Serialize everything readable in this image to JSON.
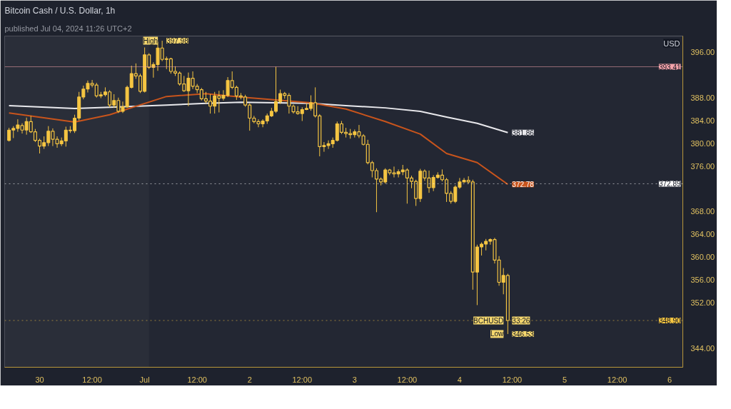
{
  "chart_data": {
    "type": "candlestick",
    "title": "Bitcoin Cash / U.S. Dollar, 1h",
    "subtitle": "published Jul 04, 2024 11:26 UTC+2",
    "ylabel": "USD",
    "color": "#f5c542",
    "x": [
      "2024-06-29T17:00",
      "2024-06-29T18:00",
      "2024-06-29T19:00",
      "2024-06-29T20:00",
      "2024-06-29T21:00",
      "2024-06-29T22:00",
      "2024-06-29T23:00",
      "2024-06-30T00:00",
      "2024-06-30T01:00",
      "2024-06-30T02:00",
      "2024-06-30T03:00",
      "2024-06-30T04:00",
      "2024-06-30T05:00",
      "2024-06-30T06:00",
      "2024-06-30T07:00",
      "2024-06-30T08:00",
      "2024-06-30T09:00",
      "2024-06-30T10:00",
      "2024-06-30T11:00",
      "2024-06-30T12:00",
      "2024-06-30T13:00",
      "2024-06-30T14:00",
      "2024-06-30T15:00",
      "2024-06-30T16:00",
      "2024-06-30T17:00",
      "2024-06-30T18:00",
      "2024-06-30T19:00",
      "2024-06-30T20:00",
      "2024-06-30T21:00",
      "2024-06-30T22:00",
      "2024-06-30T23:00",
      "2024-07-01T00:00",
      "2024-07-01T01:00",
      "2024-07-01T02:00",
      "2024-07-01T03:00",
      "2024-07-01T04:00",
      "2024-07-01T05:00",
      "2024-07-01T06:00",
      "2024-07-01T07:00",
      "2024-07-01T08:00",
      "2024-07-01T09:00",
      "2024-07-01T10:00",
      "2024-07-01T11:00",
      "2024-07-01T12:00",
      "2024-07-01T13:00",
      "2024-07-01T14:00",
      "2024-07-01T15:00",
      "2024-07-01T16:00",
      "2024-07-01T17:00",
      "2024-07-01T18:00",
      "2024-07-01T19:00",
      "2024-07-01T20:00",
      "2024-07-01T21:00",
      "2024-07-01T22:00",
      "2024-07-01T23:00",
      "2024-07-02T00:00",
      "2024-07-02T01:00",
      "2024-07-02T02:00",
      "2024-07-02T03:00",
      "2024-07-02T04:00",
      "2024-07-02T05:00",
      "2024-07-02T06:00",
      "2024-07-02T07:00",
      "2024-07-02T08:00",
      "2024-07-02T09:00",
      "2024-07-02T10:00",
      "2024-07-02T11:00",
      "2024-07-02T12:00",
      "2024-07-02T13:00",
      "2024-07-02T14:00",
      "2024-07-02T15:00",
      "2024-07-02T16:00",
      "2024-07-02T17:00",
      "2024-07-02T18:00",
      "2024-07-02T19:00",
      "2024-07-02T20:00",
      "2024-07-02T21:00",
      "2024-07-02T22:00",
      "2024-07-02T23:00",
      "2024-07-03T00:00",
      "2024-07-03T01:00",
      "2024-07-03T02:00",
      "2024-07-03T03:00",
      "2024-07-03T04:00",
      "2024-07-03T05:00",
      "2024-07-03T06:00",
      "2024-07-03T07:00",
      "2024-07-03T08:00",
      "2024-07-03T09:00",
      "2024-07-03T10:00",
      "2024-07-03T11:00",
      "2024-07-03T12:00",
      "2024-07-03T13:00",
      "2024-07-03T14:00",
      "2024-07-03T15:00",
      "2024-07-03T16:00",
      "2024-07-03T17:00",
      "2024-07-03T18:00",
      "2024-07-03T19:00",
      "2024-07-03T20:00",
      "2024-07-03T21:00",
      "2024-07-03T22:00",
      "2024-07-03T23:00",
      "2024-07-04T00:00",
      "2024-07-04T01:00",
      "2024-07-04T02:00",
      "2024-07-04T03:00",
      "2024-07-04T04:00",
      "2024-07-04T05:00",
      "2024-07-04T06:00",
      "2024-07-04T07:00",
      "2024-07-04T08:00",
      "2024-07-04T09:00",
      "2024-07-04T10:00",
      "2024-07-04T11:00"
    ],
    "ohlc": [
      [
        380.5,
        382.7,
        380.3,
        382.3
      ],
      [
        382.3,
        383.0,
        380.9,
        382.6
      ],
      [
        382.6,
        384.2,
        382.0,
        383.2
      ],
      [
        383.1,
        383.5,
        381.7,
        382.3
      ],
      [
        382.3,
        384.5,
        381.5,
        383.8
      ],
      [
        383.8,
        384.8,
        381.8,
        382.0
      ],
      [
        382.0,
        382.5,
        380.2,
        380.5
      ],
      [
        380.5,
        380.8,
        378.2,
        379.5
      ],
      [
        379.5,
        381.2,
        379.0,
        380.1
      ],
      [
        380.1,
        383.0,
        379.5,
        382.1
      ],
      [
        382.1,
        382.6,
        379.5,
        380.7
      ],
      [
        380.7,
        381.2,
        379.2,
        379.9
      ],
      [
        379.9,
        381.0,
        379.5,
        380.4
      ],
      [
        380.4,
        382.9,
        379.4,
        382.3
      ],
      [
        382.3,
        383.0,
        381.8,
        382.2
      ],
      [
        382.2,
        385.0,
        381.8,
        384.4
      ],
      [
        384.4,
        389.0,
        384.0,
        388.1
      ],
      [
        388.1,
        390.1,
        387.7,
        389.5
      ],
      [
        389.5,
        391.0,
        388.9,
        390.5
      ],
      [
        390.5,
        391.1,
        389.8,
        390.2
      ],
      [
        390.2,
        390.6,
        388.0,
        388.3
      ],
      [
        388.3,
        389.0,
        387.9,
        388.5
      ],
      [
        388.5,
        389.8,
        388.2,
        389.0
      ],
      [
        389.0,
        389.3,
        386.3,
        386.7
      ],
      [
        386.7,
        388.6,
        386.2,
        387.5
      ],
      [
        387.5,
        388.0,
        385.3,
        385.6
      ],
      [
        385.6,
        387.3,
        385.3,
        386.4
      ],
      [
        386.4,
        390.1,
        386.2,
        389.8
      ],
      [
        389.8,
        393.6,
        389.6,
        392.2
      ],
      [
        392.2,
        394.0,
        391.3,
        391.8
      ],
      [
        391.8,
        392.2,
        388.8,
        389.1
      ],
      [
        389.1,
        396.8,
        388.9,
        395.5
      ],
      [
        395.5,
        395.8,
        393.0,
        393.3
      ],
      [
        393.3,
        394.2,
        391.5,
        393.8
      ],
      [
        393.8,
        397.8,
        392.7,
        396.7
      ],
      [
        396.7,
        397.98,
        394.4,
        394.7
      ],
      [
        394.7,
        395.2,
        393.0,
        394.8
      ],
      [
        394.8,
        395.0,
        392.2,
        392.6
      ],
      [
        392.6,
        393.5,
        391.8,
        392.3
      ],
      [
        392.3,
        392.6,
        390.1,
        390.4
      ],
      [
        390.4,
        391.8,
        389.0,
        389.2
      ],
      [
        389.2,
        392.4,
        386.5,
        391.4
      ],
      [
        391.4,
        392.6,
        389.5,
        390.0
      ],
      [
        390.0,
        390.4,
        388.8,
        389.4
      ],
      [
        389.4,
        389.7,
        387.5,
        387.8
      ],
      [
        387.8,
        389.0,
        387.0,
        387.4
      ],
      [
        387.4,
        388.6,
        385.2,
        386.5
      ],
      [
        386.5,
        389.0,
        385.2,
        388.3
      ],
      [
        388.3,
        389.2,
        385.4,
        387.9
      ],
      [
        387.9,
        389.3,
        387.5,
        388.4
      ],
      [
        388.4,
        391.6,
        388.1,
        391.0
      ],
      [
        391.0,
        392.6,
        389.5,
        389.8
      ],
      [
        389.8,
        390.1,
        387.6,
        388.3
      ],
      [
        388.3,
        388.8,
        387.7,
        388.1
      ],
      [
        388.1,
        388.5,
        386.4,
        386.7
      ],
      [
        386.7,
        387.0,
        382.2,
        384.4
      ],
      [
        384.4,
        384.8,
        383.5,
        383.8
      ],
      [
        383.8,
        384.2,
        382.8,
        383.4
      ],
      [
        383.4,
        384.2,
        382.8,
        383.9
      ],
      [
        383.9,
        385.2,
        383.4,
        384.8
      ],
      [
        384.8,
        386.2,
        384.6,
        385.6
      ],
      [
        385.6,
        393.41,
        385.3,
        387.3
      ],
      [
        387.3,
        389.4,
        386.9,
        388.7
      ],
      [
        388.7,
        389.0,
        387.8,
        388.4
      ],
      [
        388.4,
        388.8,
        385.2,
        386.5
      ],
      [
        386.5,
        386.8,
        385.2,
        385.5
      ],
      [
        385.5,
        386.5,
        385.0,
        385.2
      ],
      [
        385.2,
        386.3,
        383.9,
        385.9
      ],
      [
        385.9,
        387.0,
        385.8,
        386.1
      ],
      [
        386.1,
        388.4,
        385.7,
        387.1
      ],
      [
        387.1,
        389.8,
        384.5,
        384.8
      ],
      [
        384.8,
        385.1,
        377.7,
        379.4
      ],
      [
        379.4,
        380.2,
        378.5,
        379.6
      ],
      [
        379.6,
        380.5,
        379.0,
        379.9
      ],
      [
        379.9,
        381.0,
        379.2,
        380.5
      ],
      [
        380.5,
        383.8,
        380.3,
        383.4
      ],
      [
        383.4,
        383.9,
        381.6,
        381.9
      ],
      [
        381.9,
        382.7,
        381.0,
        381.7
      ],
      [
        381.7,
        382.5,
        380.8,
        381.5
      ],
      [
        381.5,
        382.4,
        381.0,
        382.0
      ],
      [
        382.0,
        383.2,
        380.9,
        381.3
      ],
      [
        381.3,
        381.6,
        379.6,
        379.8
      ],
      [
        379.8,
        380.6,
        376.3,
        376.6
      ],
      [
        376.6,
        376.9,
        374.0,
        375.2
      ],
      [
        375.2,
        375.6,
        367.9,
        373.7
      ],
      [
        373.7,
        374.0,
        372.6,
        373.2
      ],
      [
        373.2,
        375.6,
        372.9,
        375.3
      ],
      [
        375.3,
        375.5,
        374.4,
        374.8
      ],
      [
        374.8,
        375.9,
        374.0,
        374.6
      ],
      [
        374.6,
        375.4,
        374.0,
        375.0
      ],
      [
        375.0,
        376.2,
        374.4,
        375.3
      ],
      [
        375.3,
        375.6,
        369.4,
        373.9
      ],
      [
        373.9,
        374.3,
        372.1,
        373.3
      ],
      [
        373.3,
        373.6,
        369.0,
        370.3
      ],
      [
        370.3,
        375.5,
        369.7,
        375.1
      ],
      [
        375.1,
        375.4,
        373.4,
        373.9
      ],
      [
        373.9,
        375.2,
        371.3,
        372.2
      ],
      [
        372.2,
        374.4,
        371.6,
        374.0
      ],
      [
        374.0,
        374.9,
        373.8,
        374.4
      ],
      [
        374.4,
        375.4,
        373.3,
        373.6
      ],
      [
        373.6,
        373.9,
        369.7,
        371.2
      ],
      [
        371.2,
        371.6,
        369.4,
        369.8
      ],
      [
        369.8,
        372.6,
        369.5,
        372.3
      ],
      [
        372.3,
        373.9,
        372.0,
        373.2
      ],
      [
        373.2,
        373.9,
        373.1,
        373.5
      ],
      [
        373.5,
        374.2,
        372.9,
        373.2
      ],
      [
        373.2,
        373.6,
        354.3,
        357.4
      ],
      [
        357.4,
        362.2,
        351.6,
        361.8
      ],
      [
        361.8,
        362.6,
        360.3,
        362.3
      ],
      [
        362.3,
        363.2,
        361.2,
        362.8
      ],
      [
        362.8,
        363.3,
        362.2,
        363.1
      ],
      [
        363.1,
        363.4,
        358.9,
        359.5
      ],
      [
        359.5,
        360.2,
        355.0,
        355.6
      ],
      [
        355.6,
        358.1,
        353.5,
        356.8
      ],
      [
        356.8,
        357.1,
        346.53,
        348.9
      ]
    ],
    "series": [
      {
        "type": "line",
        "color": "#e8e8ec",
        "x": [
          "2024-06-29T17:00",
          "2024-06-30T08:00",
          "2024-06-30T16:00",
          "2024-07-01T05:00",
          "2024-07-01T14:00",
          "2024-07-01T22:00",
          "2024-07-02T14:00",
          "2024-07-02T22:00",
          "2024-07-03T07:00",
          "2024-07-03T15:00",
          "2024-07-03T21:00",
          "2024-07-04T04:00",
          "2024-07-04T11:00"
        ],
        "values": [
          386.6,
          386.1,
          386.3,
          386.7,
          387.0,
          387.2,
          387.0,
          386.6,
          386.2,
          385.6,
          384.6,
          383.5,
          381.86
        ],
        "value_labels": [
          null,
          null,
          null,
          null,
          null,
          null,
          null,
          null,
          null,
          null,
          null,
          null,
          "381.86"
        ]
      },
      {
        "type": "line",
        "color": "#c8541c",
        "x": [
          "2024-06-29T17:00",
          "2024-06-30T08:00",
          "2024-06-30T16:00",
          "2024-07-01T05:00",
          "2024-07-01T14:00",
          "2024-07-01T22:00",
          "2024-07-02T14:00",
          "2024-07-02T22:00",
          "2024-07-03T07:00",
          "2024-07-03T15:00",
          "2024-07-03T21:00",
          "2024-07-04T04:00",
          "2024-07-04T11:00"
        ],
        "values": [
          385.3,
          383.7,
          385.0,
          388.2,
          388.7,
          388.1,
          387.1,
          386.0,
          383.8,
          381.6,
          378.2,
          376.6,
          372.78
        ],
        "value_labels": [
          null,
          null,
          null,
          null,
          null,
          null,
          null,
          null,
          null,
          null,
          null,
          null,
          "372.78"
        ]
      }
    ],
    "ref_lines": [
      {
        "axis": "y",
        "value": 393.41,
        "label": "393.41",
        "color": "#f4a3aa",
        "line_style": "solid"
      },
      {
        "axis": "y",
        "value": 372.89,
        "label": "372.89",
        "color": "#ffffff",
        "line_style": "dotted"
      },
      {
        "axis": "y",
        "value": 348.9,
        "label": "348.90",
        "color": "#f5c542",
        "line_style": "dotted"
      }
    ],
    "bands": [
      {
        "axis": "x",
        "from": "2024-06-29T16:00",
        "to": "2024-07-01T01:00",
        "color": "#2a2e39"
      }
    ],
    "annotations": [
      {
        "text": "High",
        "x": "2024-07-01T04:00",
        "y": 397.98
      },
      {
        "text": "397.98",
        "x": "2024-07-01T04:00",
        "y": 397.98
      },
      {
        "text": "BCHUSD",
        "x": "2024-07-04T11:00",
        "y": 348.9
      },
      {
        "text": "33:26",
        "x": "2024-07-04T11:00",
        "y": 348.9
      },
      {
        "text": "Low",
        "x": "2024-07-04T11:00",
        "y": 346.53
      },
      {
        "text": "346.53",
        "x": "2024-07-04T11:00",
        "y": 346.53
      }
    ],
    "xlim": [
      "2024-06-29T16:00",
      "2024-07-06T03:00"
    ],
    "xticks": [
      {
        "value": "2024-06-30T00:00",
        "label": "30"
      },
      {
        "value": "2024-06-30T12:00",
        "label": "12:00"
      },
      {
        "value": "2024-07-01T00:00",
        "label": "Jul"
      },
      {
        "value": "2024-07-01T12:00",
        "label": "12:00"
      },
      {
        "value": "2024-07-02T00:00",
        "label": "2"
      },
      {
        "value": "2024-07-02T12:00",
        "label": "12:00"
      },
      {
        "value": "2024-07-03T00:00",
        "label": "3"
      },
      {
        "value": "2024-07-03T12:00",
        "label": "12:00"
      },
      {
        "value": "2024-07-04T00:00",
        "label": "4"
      },
      {
        "value": "2024-07-04T12:00",
        "label": "12:00"
      },
      {
        "value": "2024-07-05T00:00",
        "label": "5"
      },
      {
        "value": "2024-07-05T12:00",
        "label": "12:00"
      },
      {
        "value": "2024-07-06T00:00",
        "label": "6"
      }
    ],
    "ylim": [
      340.7,
      398.8
    ],
    "yticks": [
      {
        "value": 344,
        "label": "344.00"
      },
      {
        "value": 352,
        "label": "352.00"
      },
      {
        "value": 356,
        "label": "356.00"
      },
      {
        "value": 360,
        "label": "360.00"
      },
      {
        "value": 364,
        "label": "364.00"
      },
      {
        "value": 368,
        "label": "368.00"
      },
      {
        "value": 376,
        "label": "376.00"
      },
      {
        "value": 380,
        "label": "380.00"
      },
      {
        "value": 384,
        "label": "384.00"
      },
      {
        "value": 388,
        "label": "388.00"
      },
      {
        "value": 396,
        "label": "396.00"
      }
    ]
  }
}
